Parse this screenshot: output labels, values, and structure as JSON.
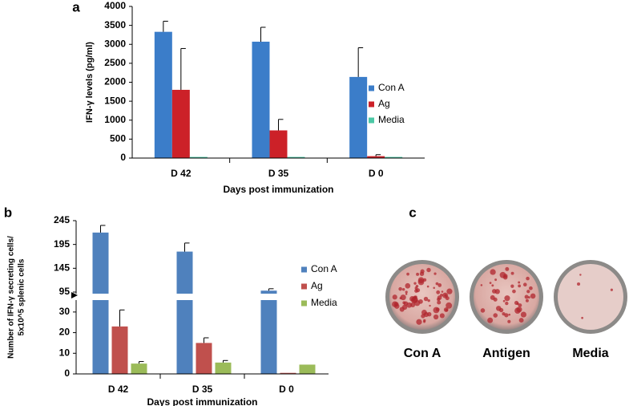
{
  "chart_data": [
    {
      "type": "bar",
      "panel": "a",
      "ylabel": "IFN-γ levels (pg/ml)",
      "xlabel": "Days post immunization",
      "categories": [
        "D 42",
        "D 35",
        "D 0"
      ],
      "series": [
        {
          "name": "Con A",
          "color": "#3b7dc9",
          "values": [
            3330,
            3070,
            2140
          ],
          "errors": [
            280,
            380,
            770
          ]
        },
        {
          "name": "Ag",
          "color": "#cc2128",
          "values": [
            1800,
            730,
            50
          ],
          "errors": [
            1090,
            290,
            40
          ]
        },
        {
          "name": "Media",
          "color": "#4cc8a6",
          "values": [
            30,
            30,
            30
          ]
        }
      ],
      "ylim": [
        0,
        4000
      ],
      "yticks": [
        0,
        500,
        1000,
        1500,
        2000,
        2500,
        3000,
        3500,
        4000
      ]
    },
    {
      "type": "bar",
      "panel": "b",
      "ylabel": [
        "Number of IFN-γ secreting cells/",
        "5x10^5 splenic cells"
      ],
      "xlabel": "Days post immunization",
      "categories": [
        "D 42",
        "D 35",
        "D 0"
      ],
      "series": [
        {
          "name": "Con A",
          "color": "#4f81bd",
          "values": [
            220,
            180,
            98
          ],
          "errors": [
            15,
            18,
            4
          ]
        },
        {
          "name": "Ag",
          "color": "#c0504d",
          "values": [
            23,
            15,
            0.5
          ],
          "errors": [
            8,
            2.5,
            0
          ]
        },
        {
          "name": "Media",
          "color": "#9bbb59",
          "values": [
            5,
            5.5,
            4.5
          ],
          "errors": [
            1,
            1,
            0
          ]
        }
      ],
      "ylim": [
        0,
        245
      ],
      "ybreak": [
        35,
        95
      ],
      "yticks": [
        0,
        10,
        20,
        30,
        95,
        145,
        195,
        245
      ]
    }
  ],
  "panel_c": {
    "label": "c",
    "wells": [
      "Con A",
      "Antigen",
      "Media"
    ]
  }
}
